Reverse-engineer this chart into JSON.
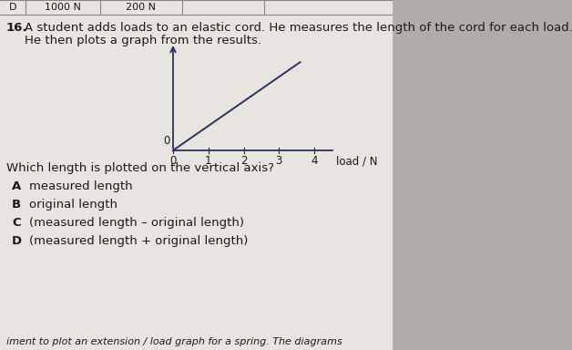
{
  "background_color": "#d4d0cc",
  "paper_color": "#e8e5e0",
  "header_box_color": "#c8c5c0",
  "header_d": "D",
  "header_1000": "1000 N",
  "header_200": "200 N",
  "question_number": "16.",
  "question_text": "A student adds loads to an elastic cord. He measures the length of the cord for each load.",
  "question_text2": "He then plots a graph from the results.",
  "graph_xlabel": "load / N",
  "graph_xticks": [
    0,
    1,
    2,
    3,
    4
  ],
  "graph_color": "#2d3060",
  "sub_question": "Which length is plotted on the vertical axis?",
  "options": [
    {
      "label": "A",
      "text": "measured length"
    },
    {
      "label": "B",
      "text": "original length"
    },
    {
      "label": "C",
      "text": "(measured length – original length)"
    },
    {
      "label": "D",
      "text": "(measured length + original length)"
    }
  ],
  "footer_text": "iment to plot an extension / load graph for a spring. The diagrams",
  "text_color": "#1a1a1a",
  "shadow_color": "#b0aca8"
}
